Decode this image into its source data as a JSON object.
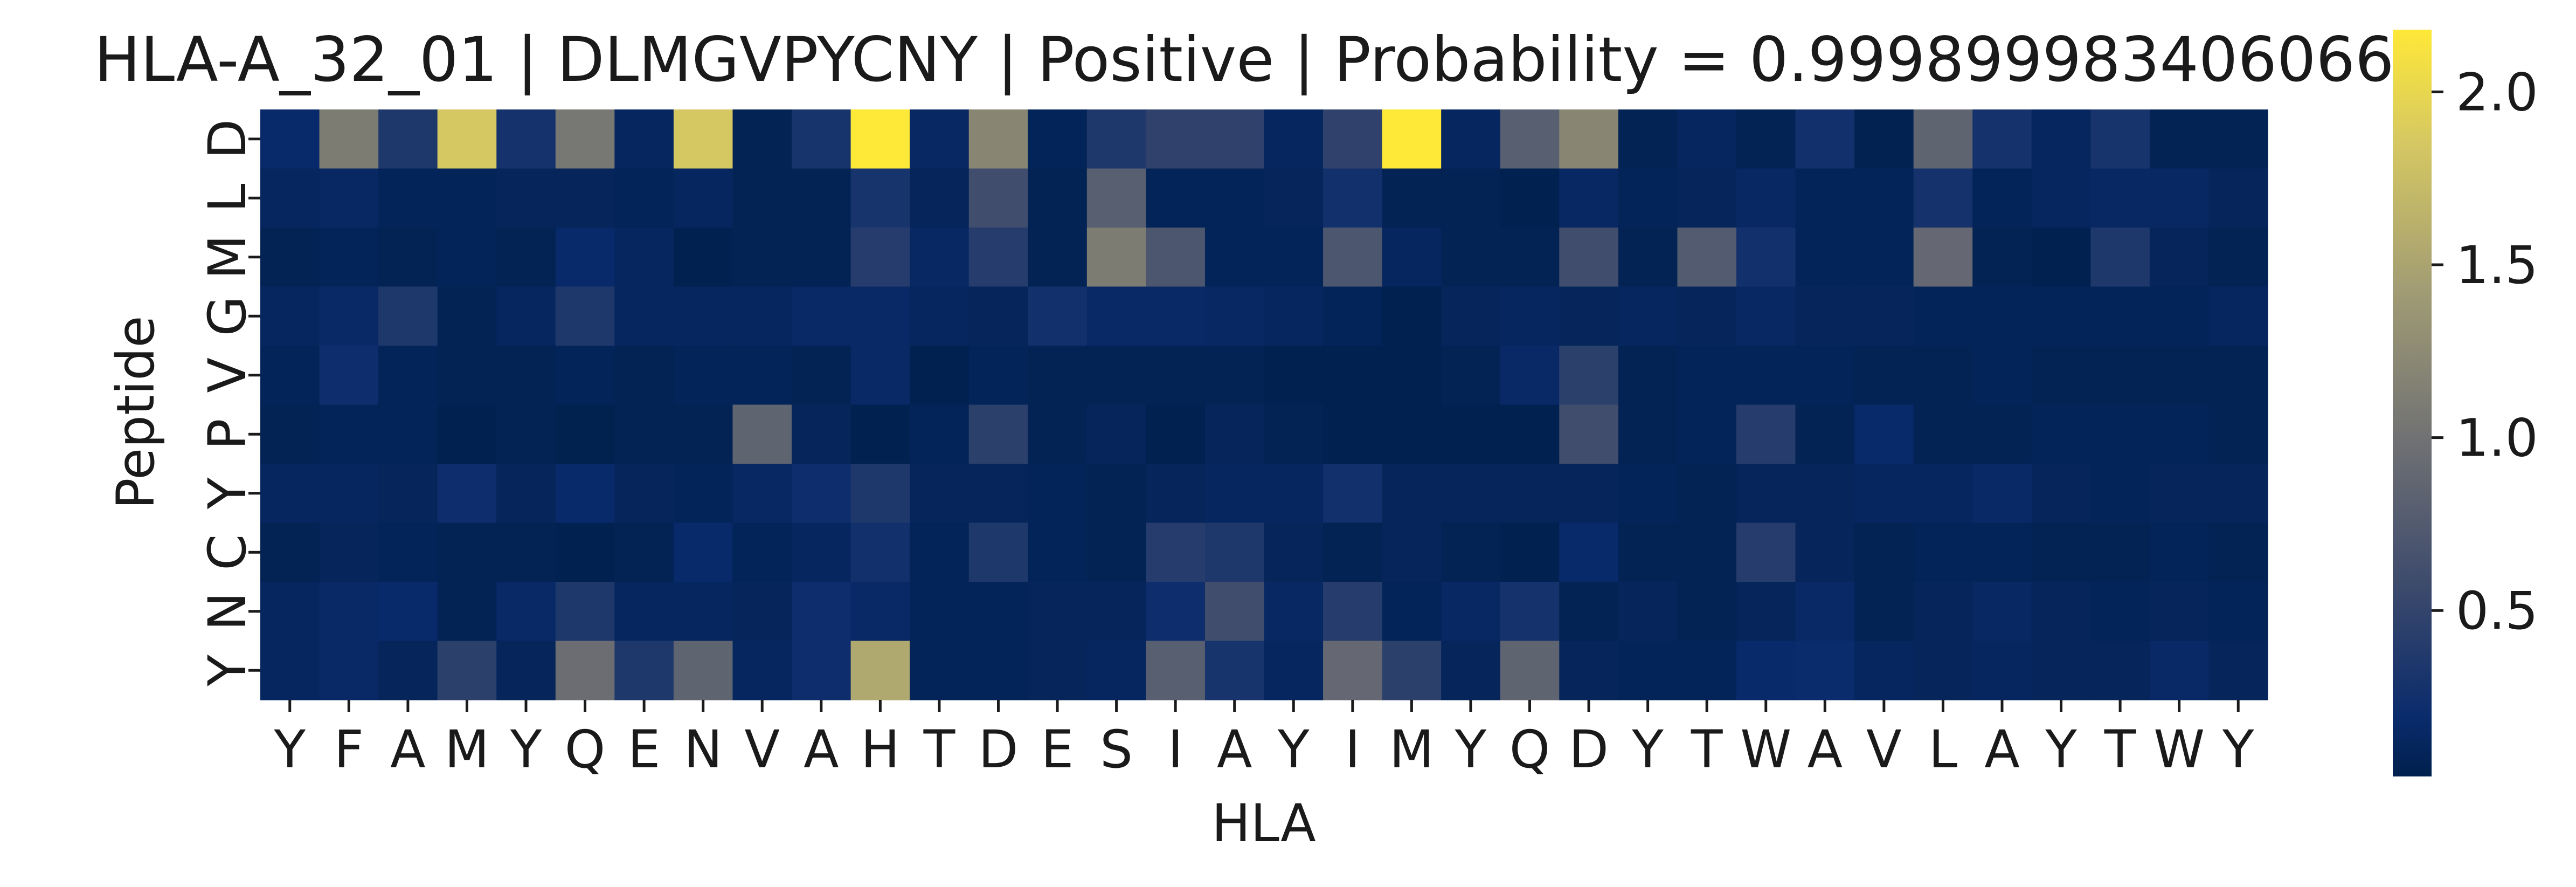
{
  "chart_data": {
    "type": "heatmap",
    "title": "HLA-A_32_01 | DLMGVPYCNY | Positive | Probability = 0.9998999834060669",
    "xlabel": "HLA",
    "ylabel": "Peptide",
    "x_labels": [
      "Y",
      "F",
      "A",
      "M",
      "Y",
      "Q",
      "E",
      "N",
      "V",
      "A",
      "H",
      "T",
      "D",
      "E",
      "S",
      "I",
      "A",
      "Y",
      "I",
      "M",
      "Y",
      "Q",
      "D",
      "Y",
      "T",
      "W",
      "A",
      "V",
      "L",
      "A",
      "Y",
      "T",
      "W",
      "Y"
    ],
    "y_labels": [
      "D",
      "L",
      "M",
      "G",
      "V",
      "P",
      "Y",
      "C",
      "N",
      "Y"
    ],
    "colorbar": {
      "colormap": "cividis",
      "min": 0.02,
      "max": 2.18,
      "ticks": [
        0.5,
        1.0,
        1.5,
        2.0
      ],
      "tick_labels": [
        "0.5",
        "1.0",
        "1.5",
        "2.0"
      ]
    },
    "values": [
      [
        0.18,
        1.1,
        0.35,
        1.85,
        0.28,
        1.05,
        0.12,
        1.85,
        0.06,
        0.3,
        2.18,
        0.15,
        1.2,
        0.08,
        0.35,
        0.48,
        0.48,
        0.12,
        0.48,
        2.18,
        0.12,
        0.8,
        1.2,
        0.06,
        0.12,
        0.06,
        0.25,
        0.05,
        0.85,
        0.28,
        0.12,
        0.3,
        0.06,
        0.06
      ],
      [
        0.12,
        0.14,
        0.08,
        0.08,
        0.1,
        0.1,
        0.08,
        0.12,
        0.06,
        0.06,
        0.3,
        0.1,
        0.6,
        0.06,
        0.8,
        0.08,
        0.08,
        0.1,
        0.25,
        0.06,
        0.06,
        0.04,
        0.15,
        0.08,
        0.1,
        0.14,
        0.08,
        0.08,
        0.28,
        0.08,
        0.12,
        0.15,
        0.14,
        0.1
      ],
      [
        0.06,
        0.08,
        0.06,
        0.08,
        0.06,
        0.18,
        0.12,
        0.04,
        0.06,
        0.06,
        0.4,
        0.15,
        0.4,
        0.06,
        1.1,
        0.7,
        0.08,
        0.08,
        0.7,
        0.12,
        0.06,
        0.06,
        0.6,
        0.06,
        0.75,
        0.25,
        0.08,
        0.08,
        0.9,
        0.06,
        0.04,
        0.35,
        0.1,
        0.06
      ],
      [
        0.12,
        0.16,
        0.35,
        0.06,
        0.12,
        0.35,
        0.12,
        0.12,
        0.12,
        0.16,
        0.16,
        0.12,
        0.1,
        0.25,
        0.16,
        0.16,
        0.14,
        0.12,
        0.08,
        0.04,
        0.1,
        0.12,
        0.1,
        0.12,
        0.1,
        0.14,
        0.1,
        0.1,
        0.08,
        0.08,
        0.08,
        0.08,
        0.08,
        0.12
      ],
      [
        0.08,
        0.22,
        0.08,
        0.06,
        0.06,
        0.08,
        0.06,
        0.08,
        0.08,
        0.06,
        0.16,
        0.04,
        0.08,
        0.06,
        0.06,
        0.06,
        0.06,
        0.04,
        0.04,
        0.04,
        0.06,
        0.16,
        0.45,
        0.06,
        0.08,
        0.08,
        0.08,
        0.06,
        0.06,
        0.08,
        0.06,
        0.06,
        0.06,
        0.06
      ],
      [
        0.06,
        0.08,
        0.08,
        0.04,
        0.06,
        0.03,
        0.06,
        0.06,
        0.85,
        0.1,
        0.04,
        0.08,
        0.45,
        0.06,
        0.1,
        0.04,
        0.1,
        0.06,
        0.04,
        0.04,
        0.04,
        0.04,
        0.6,
        0.06,
        0.08,
        0.4,
        0.06,
        0.18,
        0.06,
        0.06,
        0.08,
        0.08,
        0.08,
        0.06
      ],
      [
        0.12,
        0.12,
        0.1,
        0.22,
        0.1,
        0.18,
        0.1,
        0.08,
        0.15,
        0.22,
        0.35,
        0.1,
        0.1,
        0.08,
        0.06,
        0.1,
        0.12,
        0.12,
        0.25,
        0.1,
        0.1,
        0.1,
        0.1,
        0.08,
        0.06,
        0.1,
        0.1,
        0.12,
        0.12,
        0.16,
        0.1,
        0.08,
        0.1,
        0.1
      ],
      [
        0.06,
        0.1,
        0.08,
        0.06,
        0.06,
        0.04,
        0.06,
        0.18,
        0.08,
        0.12,
        0.25,
        0.08,
        0.35,
        0.08,
        0.06,
        0.4,
        0.35,
        0.1,
        0.06,
        0.1,
        0.06,
        0.04,
        0.18,
        0.06,
        0.06,
        0.4,
        0.1,
        0.06,
        0.08,
        0.08,
        0.06,
        0.06,
        0.08,
        0.06
      ],
      [
        0.12,
        0.16,
        0.18,
        0.06,
        0.16,
        0.35,
        0.12,
        0.12,
        0.1,
        0.22,
        0.16,
        0.08,
        0.08,
        0.1,
        0.1,
        0.22,
        0.6,
        0.15,
        0.4,
        0.08,
        0.14,
        0.28,
        0.06,
        0.1,
        0.06,
        0.1,
        0.16,
        0.06,
        0.1,
        0.14,
        0.1,
        0.08,
        0.1,
        0.08
      ],
      [
        0.12,
        0.16,
        0.1,
        0.45,
        0.1,
        0.95,
        0.35,
        0.85,
        0.12,
        0.22,
        1.55,
        0.08,
        0.08,
        0.1,
        0.12,
        0.8,
        0.3,
        0.12,
        0.9,
        0.45,
        0.1,
        0.85,
        0.1,
        0.08,
        0.08,
        0.18,
        0.2,
        0.12,
        0.1,
        0.12,
        0.1,
        0.1,
        0.16,
        0.1
      ]
    ]
  }
}
